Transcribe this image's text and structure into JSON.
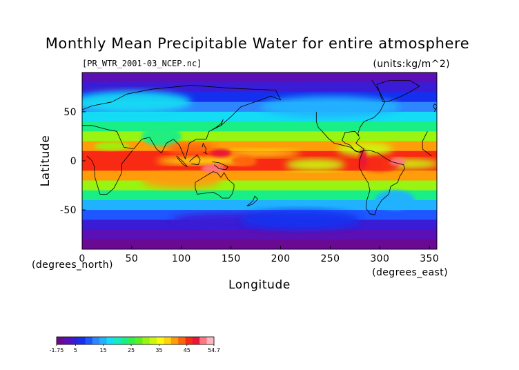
{
  "chart_data": {
    "type": "heatmap",
    "title": "Monthly Mean Precipitable Water for entire atmosphere",
    "source_file": "[PR_WTR_2001-03_NCEP.nc]",
    "units": "(units:kg/m^2)",
    "xlabel": "Longitude",
    "ylabel": "Latitude",
    "x_unit_label": "(degrees_east)",
    "y_unit_label": "(degrees_north)",
    "xlim": [
      0,
      357.5
    ],
    "ylim": [
      -90,
      90
    ],
    "x_ticks": [
      0,
      50,
      100,
      150,
      200,
      250,
      300,
      350
    ],
    "y_ticks": [
      50,
      0,
      -50
    ],
    "colorbar": {
      "min": -1.75,
      "max": 54.7,
      "tick_labels": [
        "-1.75",
        "5",
        "15",
        "25",
        "35",
        "45",
        "54.7"
      ],
      "tick_values": [
        -1.75,
        5,
        15,
        25,
        35,
        45,
        54.7
      ],
      "colors": [
        "#6a0a94",
        "#5a10b4",
        "#3a1cd6",
        "#1430ee",
        "#1e56ff",
        "#2e86ff",
        "#20b2ff",
        "#14dcf4",
        "#12ecc0",
        "#1aee86",
        "#30f04c",
        "#5cf020",
        "#98f410",
        "#ccf80a",
        "#fafa0a",
        "#ffd40a",
        "#ff9c0a",
        "#ff640a",
        "#f82a14",
        "#ea1638",
        "#ff7884",
        "#ffb6bc"
      ]
    },
    "grid": false,
    "legend": "none",
    "lat_profile": [
      {
        "lat": 90,
        "value": 2
      },
      {
        "lat": 80,
        "value": 3
      },
      {
        "lat": 70,
        "value": 6
      },
      {
        "lat": 60,
        "value": 10
      },
      {
        "lat": 50,
        "value": 14
      },
      {
        "lat": 40,
        "value": 20
      },
      {
        "lat": 30,
        "value": 27
      },
      {
        "lat": 20,
        "value": 35
      },
      {
        "lat": 10,
        "value": 44
      },
      {
        "lat": 0,
        "value": 47
      },
      {
        "lat": -10,
        "value": 46
      },
      {
        "lat": -20,
        "value": 37
      },
      {
        "lat": -30,
        "value": 26
      },
      {
        "lat": -40,
        "value": 18
      },
      {
        "lat": -50,
        "value": 12
      },
      {
        "lat": -60,
        "value": 7
      },
      {
        "lat": -70,
        "value": 3
      },
      {
        "lat": -80,
        "value": 1
      },
      {
        "lat": -90,
        "value": 0
      }
    ]
  }
}
